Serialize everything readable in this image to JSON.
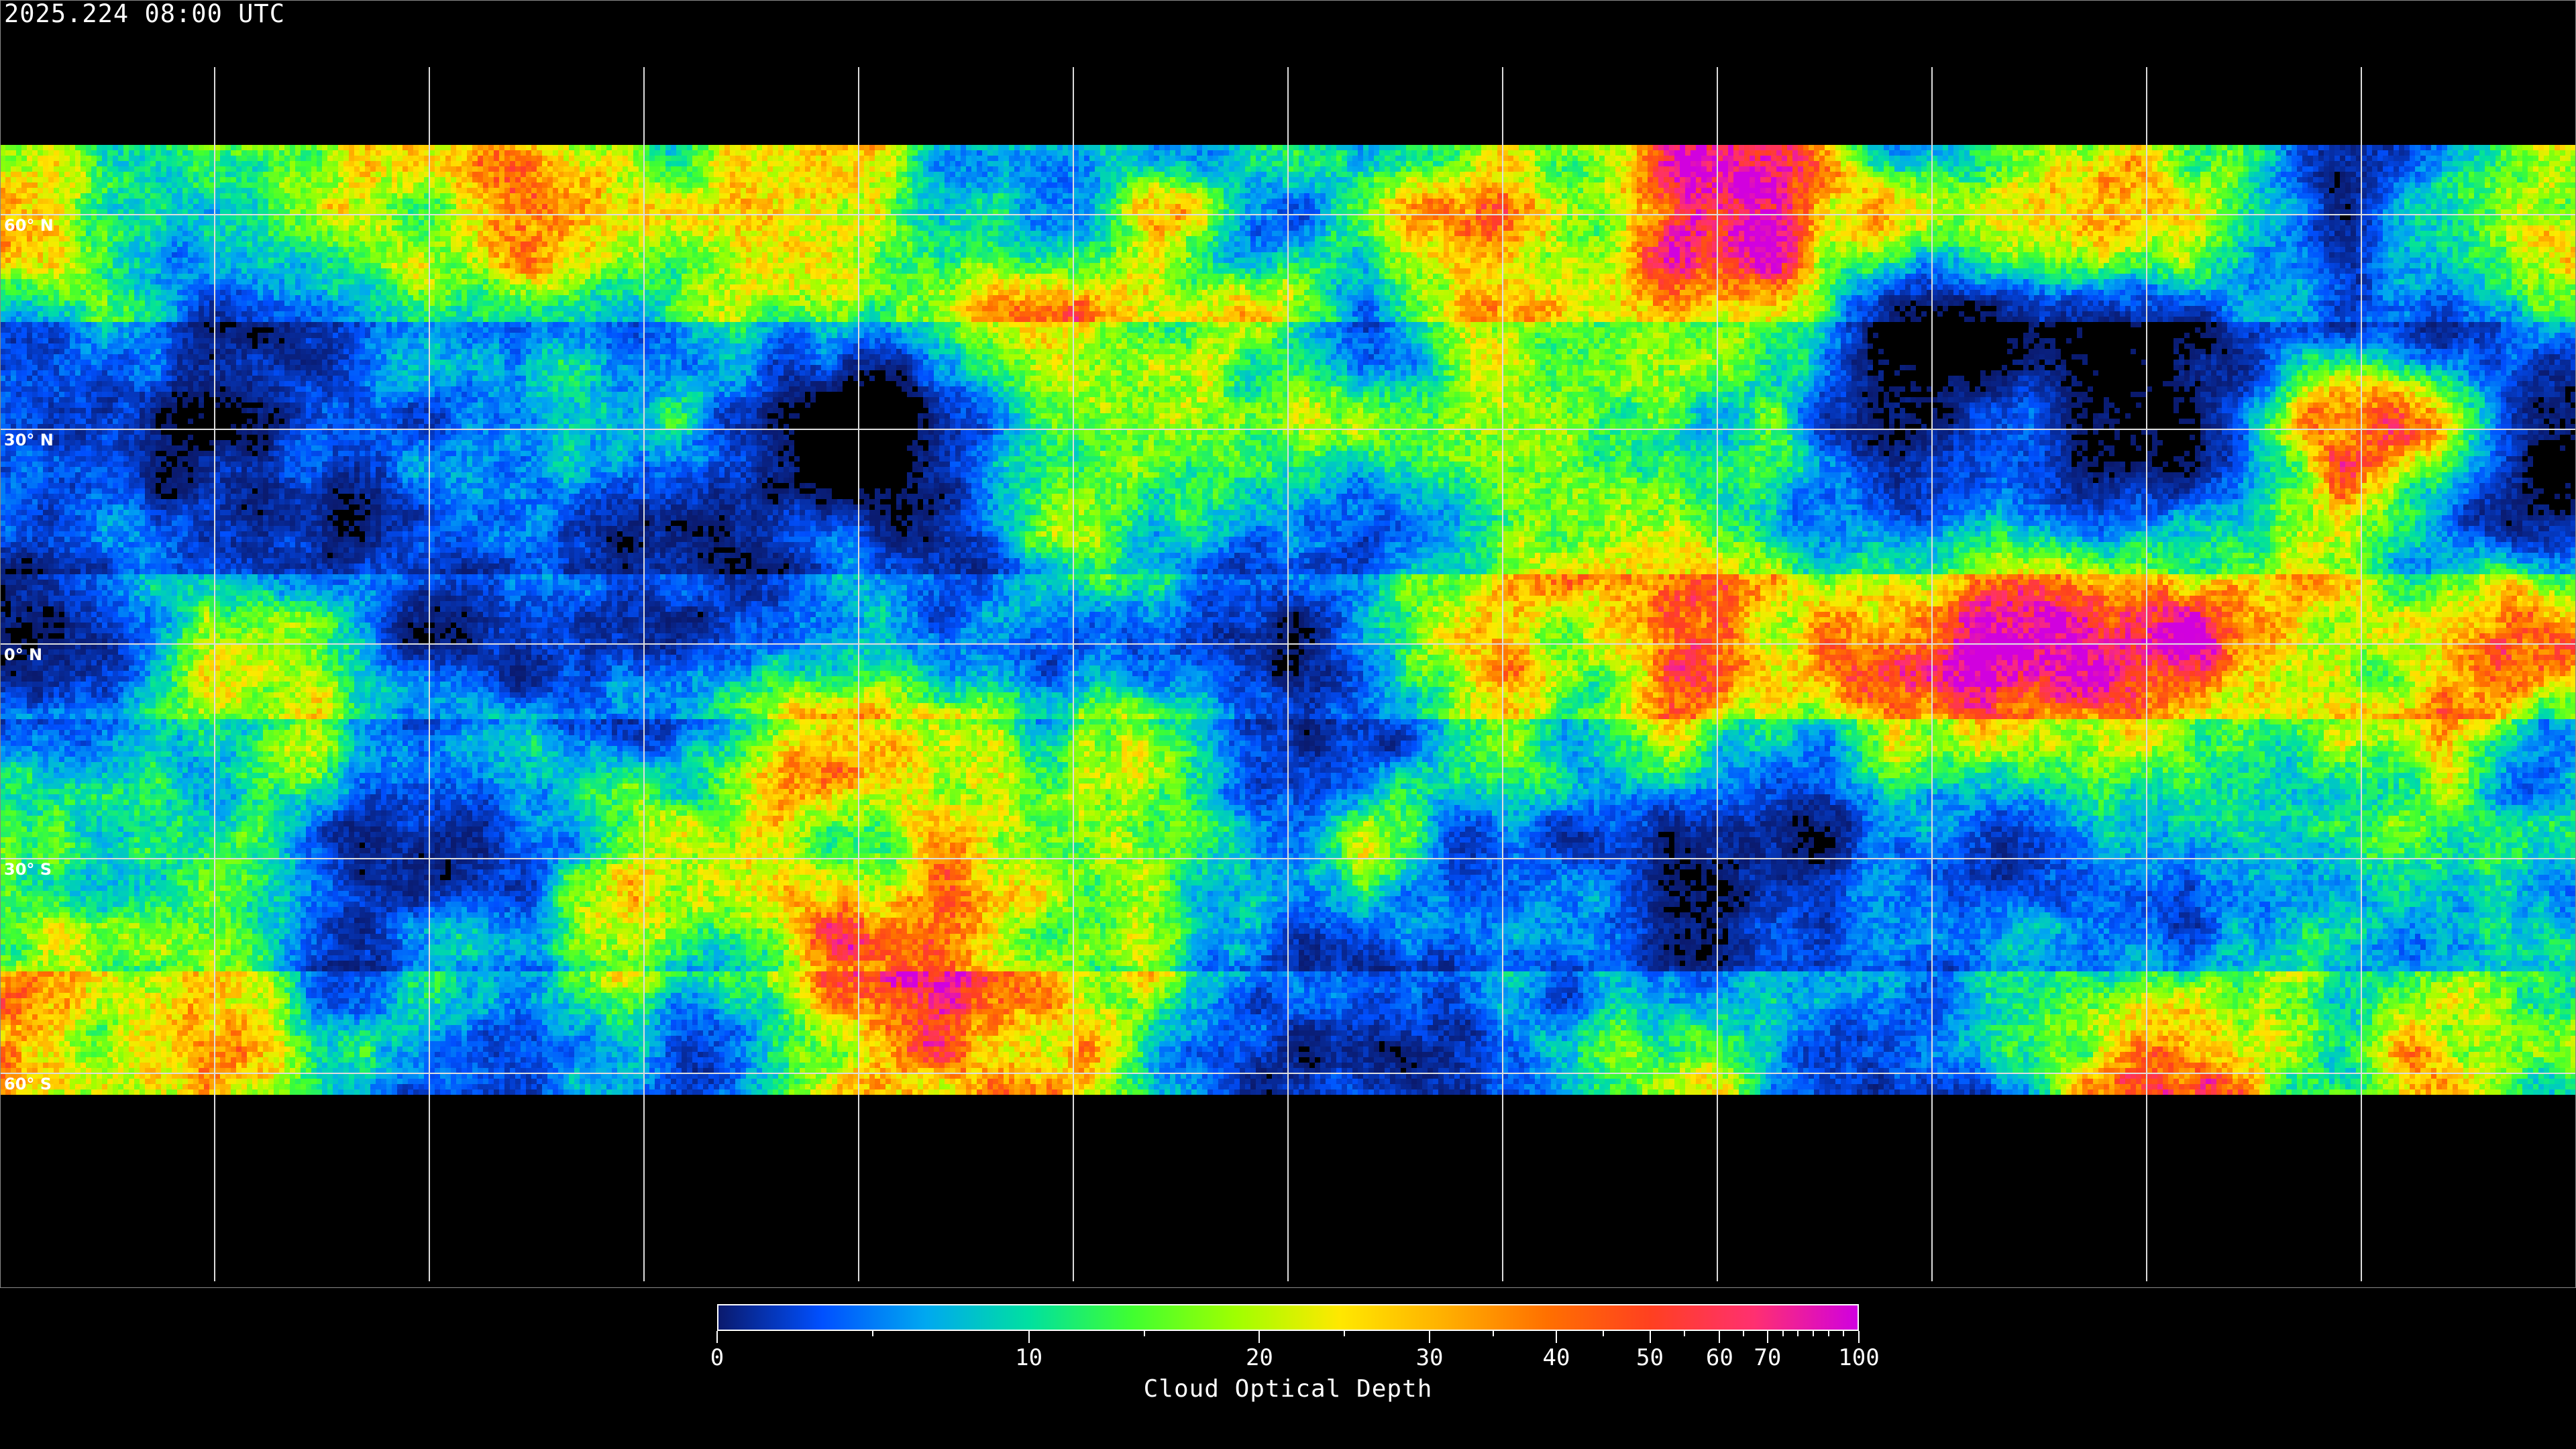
{
  "header": {
    "timestamp": "2025.224 08:00 UTC"
  },
  "map": {
    "projection": "equirectangular",
    "variable": "cloud optical depth",
    "lat_labels": [
      "60° N",
      "30° N",
      "0° N",
      "30° S",
      "60° S"
    ],
    "gridline_spacing_degrees": 30,
    "coastlines": true,
    "coastline_color": "#ffffff",
    "no_data_color": "#000000"
  },
  "colorbar": {
    "title": "Cloud Optical Depth",
    "range": [
      0,
      100
    ],
    "tick_labels": [
      "0",
      "10",
      "20",
      "30",
      "40",
      "50",
      "60",
      "70",
      "100"
    ],
    "colors": [
      "#0a1a6e",
      "#0050ff",
      "#00a8f0",
      "#00e0a0",
      "#40ff30",
      "#a0ff00",
      "#ffe800",
      "#ffb000",
      "#ff7000",
      "#ff4020",
      "#ff3070",
      "#d000e0"
    ]
  }
}
